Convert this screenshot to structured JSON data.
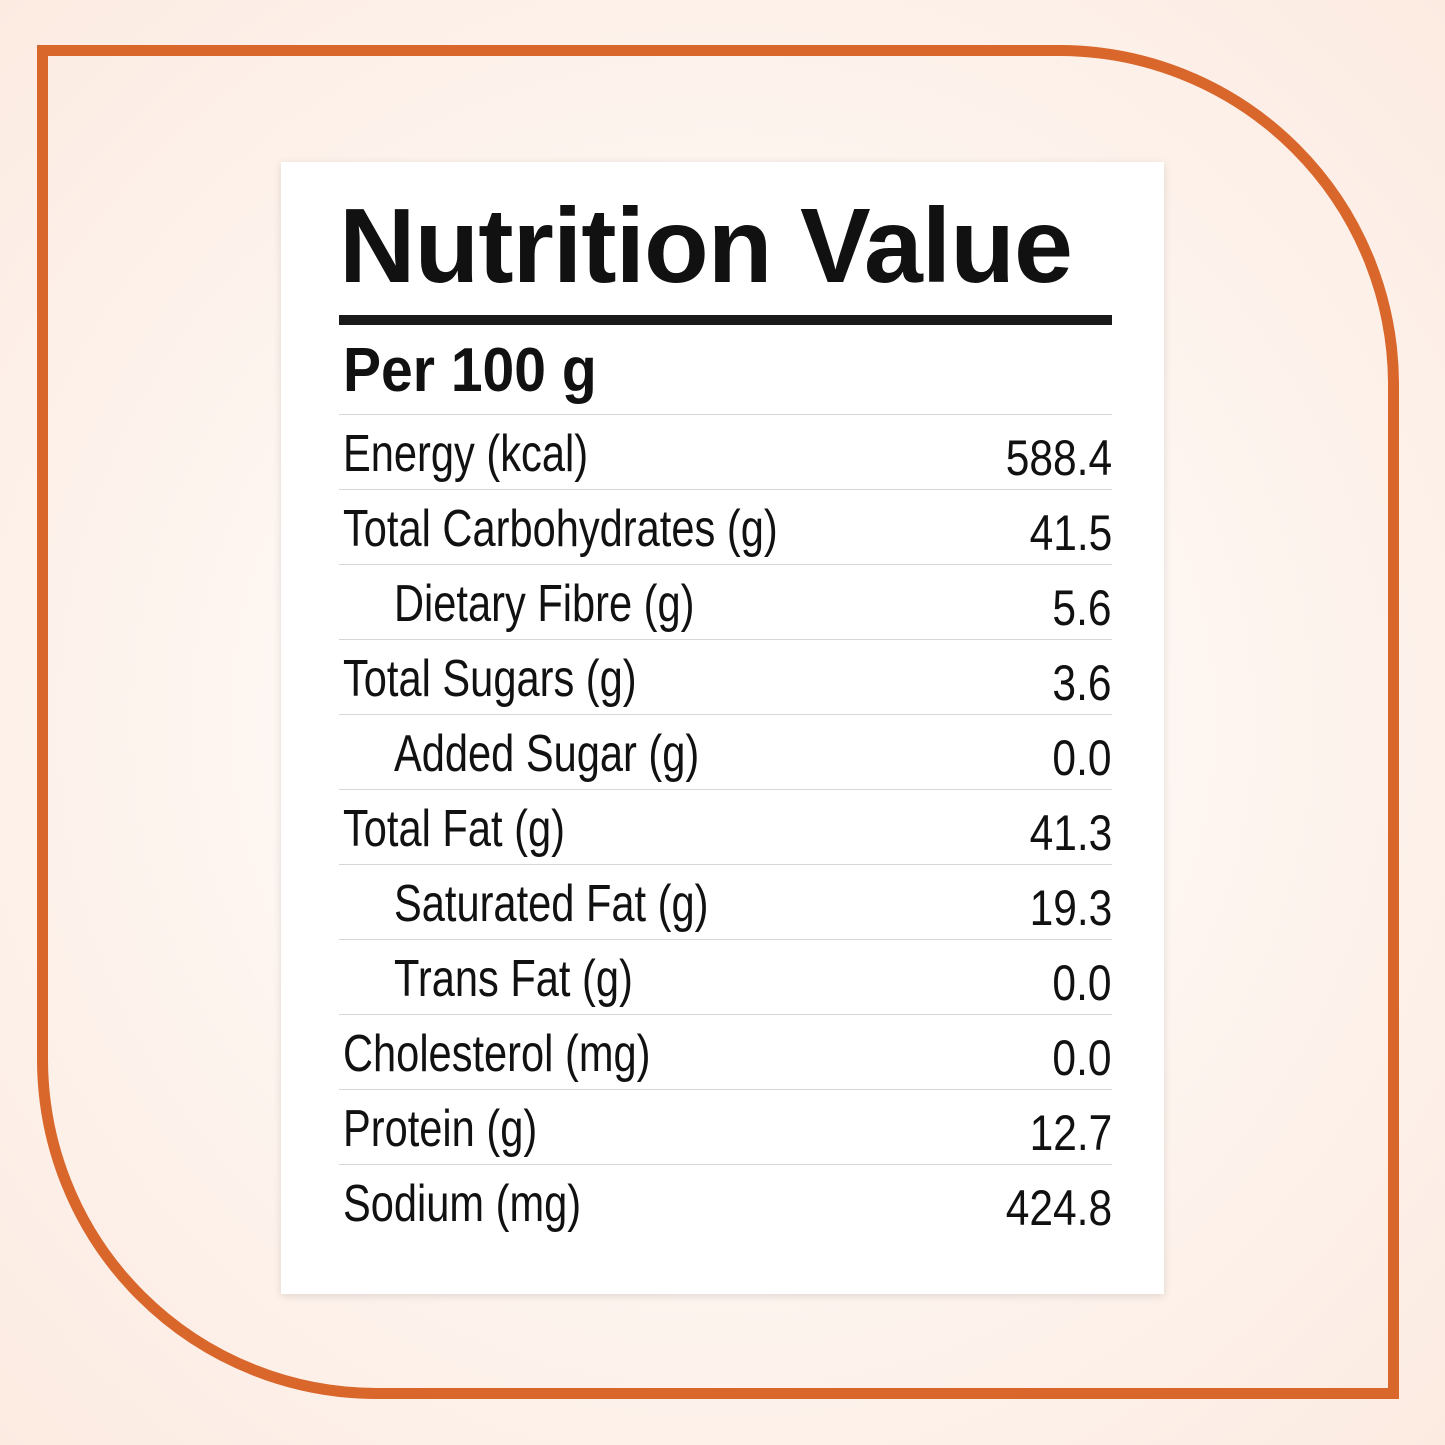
{
  "title": "Nutrition Value",
  "serving": "Per 100 g",
  "colors": {
    "frame": "#d9662b",
    "text": "#111111",
    "card": "#ffffff"
  },
  "rows": [
    {
      "label": "Energy (kcal)",
      "value": "588.4",
      "indent": false
    },
    {
      "label": "Total Carbohydrates (g)",
      "value": "41.5",
      "indent": false
    },
    {
      "label": "Dietary Fibre (g)",
      "value": "5.6",
      "indent": true
    },
    {
      "label": "Total Sugars (g)",
      "value": "3.6",
      "indent": false
    },
    {
      "label": "Added Sugar (g)",
      "value": "0.0",
      "indent": true
    },
    {
      "label": "Total Fat (g)",
      "value": "41.3",
      "indent": false
    },
    {
      "label": "Saturated Fat (g)",
      "value": "19.3",
      "indent": true
    },
    {
      "label": "Trans Fat (g)",
      "value": "0.0",
      "indent": true
    },
    {
      "label": "Cholesterol (mg)",
      "value": "0.0",
      "indent": false
    },
    {
      "label": "Protein (g)",
      "value": "12.7",
      "indent": false
    },
    {
      "label": "Sodium (mg)",
      "value": "424.8",
      "indent": false
    }
  ]
}
